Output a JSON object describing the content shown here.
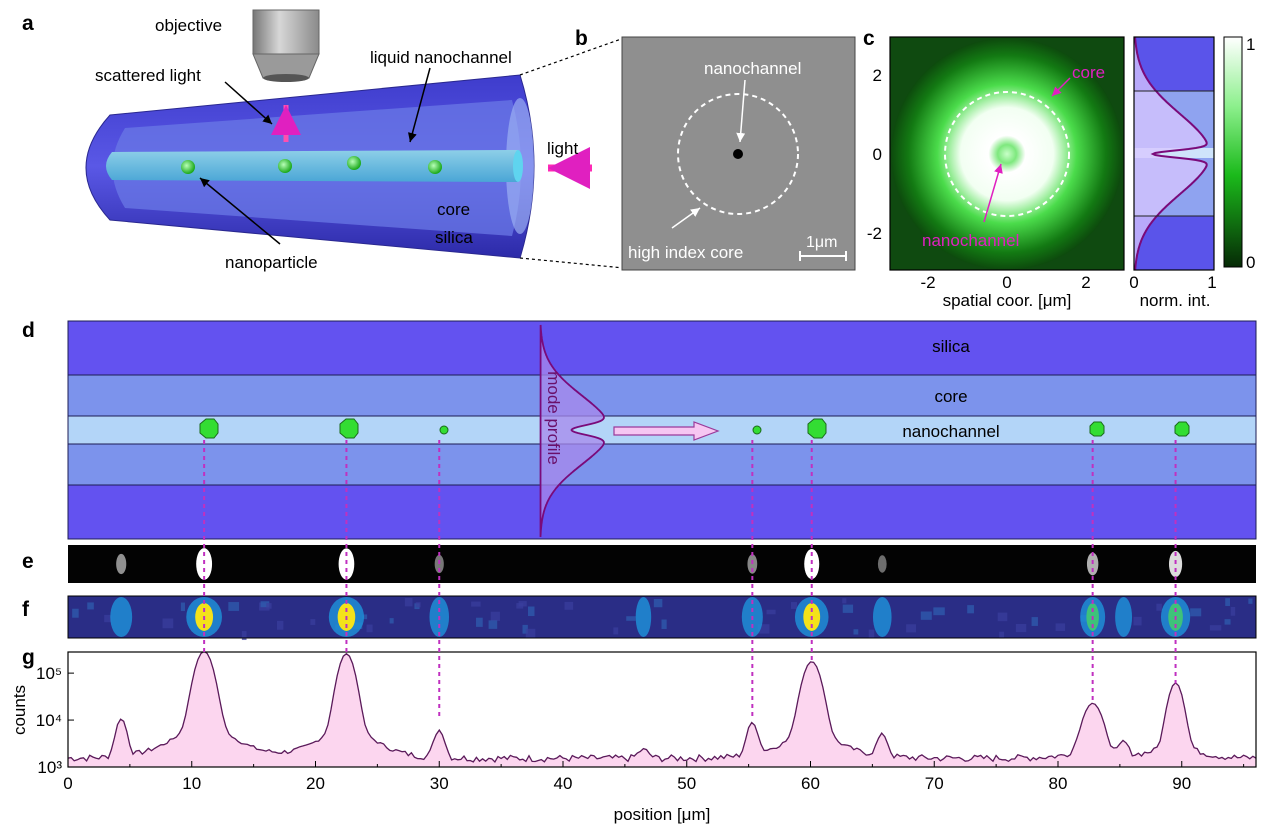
{
  "panels": {
    "a": {
      "letter": "a",
      "labels": {
        "objective": "objective",
        "scattered_light": "scattered light",
        "liquid_nanochannel": "liquid nanochannel",
        "light": "light",
        "core": "core",
        "silica": "silica",
        "nanoparticle": "nanoparticle"
      }
    },
    "b": {
      "letter": "b",
      "labels": {
        "nanochannel": "nanochannel",
        "high_index_core": "high index core",
        "scale_bar": "1μm"
      }
    },
    "c": {
      "letter": "c",
      "labels": {
        "core": "core",
        "nanochannel": "nanochannel",
        "xlabel": "spatial coor. [μm]",
        "profile_xlabel": "norm. int."
      },
      "x_ticks": [
        "-2",
        "0",
        "2"
      ],
      "y_ticks": [
        "2",
        "0",
        "-2"
      ],
      "profile_ticks": [
        "0",
        "1"
      ],
      "colorbar_ticks": [
        "1",
        "0"
      ],
      "colors": {
        "map_high": "#ffffff",
        "map_mid": "#2bd62b",
        "map_low": "#0c3d0c",
        "profile_line": "#7a0a7a"
      }
    },
    "d": {
      "letter": "d",
      "labels": {
        "silica": "silica",
        "core": "core",
        "nanochannel": "nanochannel",
        "mode_profile": "mode profile"
      },
      "colors": {
        "silica": "#6352f0",
        "core": "#7c93ec",
        "nanochannel": "#b3d5f8",
        "particle": "#33dd33"
      }
    },
    "e": {
      "letter": "e"
    },
    "f": {
      "letter": "f"
    },
    "g": {
      "letter": "g"
    }
  },
  "chart_data": {
    "type": "area",
    "xlabel": "position [μm]",
    "ylabel": "counts",
    "x_ticks": [
      "0",
      "10",
      "20",
      "30",
      "40",
      "50",
      "60",
      "70",
      "80",
      "90"
    ],
    "y_ticks": [
      "10³",
      "10⁴",
      "10⁵"
    ],
    "xlim": [
      0,
      96
    ],
    "ylim_log10": [
      3,
      5.45
    ],
    "y_scale": "log",
    "baseline": 1500,
    "peaks": [
      {
        "x": 4.3,
        "y": 10500,
        "w": 0.35
      },
      {
        "x": 11.0,
        "y": 280000,
        "w": 0.55
      },
      {
        "x": 22.5,
        "y": 250000,
        "w": 0.5
      },
      {
        "x": 30.0,
        "y": 6000,
        "w": 0.35
      },
      {
        "x": 46.5,
        "y": 2300,
        "w": 0.4
      },
      {
        "x": 55.3,
        "y": 8500,
        "w": 0.35
      },
      {
        "x": 60.1,
        "y": 170000,
        "w": 0.55
      },
      {
        "x": 65.8,
        "y": 4800,
        "w": 0.35
      },
      {
        "x": 82.8,
        "y": 22000,
        "w": 0.6
      },
      {
        "x": 85.3,
        "y": 3200,
        "w": 0.3
      },
      {
        "x": 89.5,
        "y": 60000,
        "w": 0.45
      }
    ],
    "colors": {
      "fill": "#fcd6ef",
      "line": "#5a1a5a",
      "marker_line": "#c030c0"
    }
  }
}
